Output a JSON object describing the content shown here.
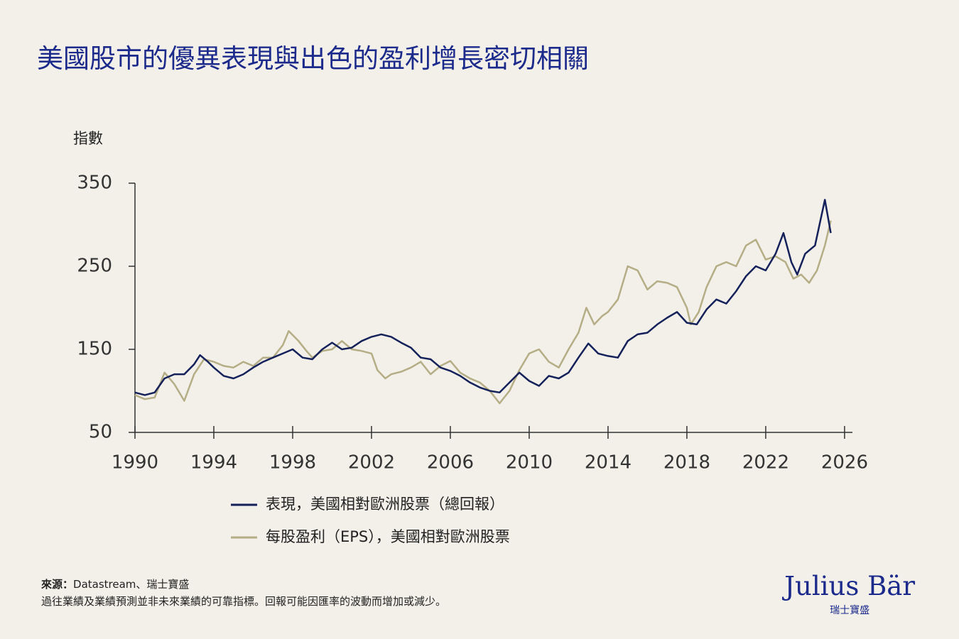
{
  "title": "美國股市的優異表現與出色的盈利增長密切相關",
  "chart_data": {
    "type": "line",
    "y_label": "指數",
    "xlim": [
      1990,
      2026.4
    ],
    "ylim": [
      50,
      350
    ],
    "xticks": [
      1990,
      1994,
      1998,
      2002,
      2006,
      2010,
      2014,
      2018,
      2022,
      2026
    ],
    "yticks": [
      50,
      150,
      250,
      350
    ],
    "series": [
      {
        "name": "表現，美國相對歐洲股票（總回報）",
        "color": "#14215a",
        "x": [
          1990,
          1990.5,
          1991,
          1991.5,
          1992,
          1992.5,
          1993,
          1993.3,
          1993.7,
          1994,
          1994.5,
          1995,
          1995.5,
          1996,
          1996.5,
          1997,
          1997.5,
          1998,
          1998.5,
          1999,
          1999.5,
          2000,
          2000.5,
          2001,
          2001.5,
          2002,
          2002.5,
          2003,
          2003.5,
          2004,
          2004.5,
          2005,
          2005.5,
          2006,
          2006.5,
          2007,
          2007.5,
          2008,
          2008.5,
          2009,
          2009.5,
          2010,
          2010.5,
          2011,
          2011.5,
          2012,
          2012.5,
          2013,
          2013.5,
          2014,
          2014.5,
          2015,
          2015.5,
          2016,
          2016.5,
          2017,
          2017.5,
          2018,
          2018.5,
          2019,
          2019.5,
          2020,
          2020.5,
          2021,
          2021.5,
          2022,
          2022.5,
          2022.9,
          2023.3,
          2023.6,
          2024,
          2024.5,
          2025,
          2025.3
        ],
        "values": [
          98,
          95,
          98,
          115,
          120,
          120,
          132,
          143,
          135,
          128,
          118,
          115,
          120,
          128,
          135,
          140,
          145,
          150,
          140,
          138,
          150,
          158,
          150,
          152,
          160,
          165,
          168,
          165,
          158,
          152,
          140,
          138,
          128,
          124,
          118,
          110,
          104,
          100,
          98,
          110,
          122,
          112,
          106,
          118,
          115,
          122,
          140,
          157,
          145,
          142,
          140,
          160,
          168,
          170,
          180,
          188,
          195,
          182,
          180,
          198,
          210,
          205,
          220,
          238,
          250,
          245,
          265,
          290,
          255,
          240,
          265,
          275,
          330,
          290
        ]
      },
      {
        "name": "每股盈利（EPS），美國相對歐洲股票",
        "color": "#b5ad85",
        "x": [
          1990,
          1990.5,
          1991,
          1991.5,
          1992,
          1992.5,
          1993,
          1993.5,
          1994,
          1994.5,
          1995,
          1995.5,
          1996,
          1996.5,
          1997,
          1997.5,
          1997.8,
          1998.3,
          1998.7,
          1999,
          1999.5,
          2000,
          2000.5,
          2001,
          2001.5,
          2002,
          2002.3,
          2002.7,
          2003,
          2003.5,
          2004,
          2004.5,
          2005,
          2005.5,
          2006,
          2006.5,
          2007,
          2007.5,
          2008,
          2008.5,
          2009,
          2009.5,
          2010,
          2010.5,
          2011,
          2011.5,
          2012,
          2012.5,
          2012.9,
          2013.3,
          2013.7,
          2014,
          2014.5,
          2015,
          2015.5,
          2016,
          2016.5,
          2017,
          2017.5,
          2018,
          2018.2,
          2018.6,
          2019,
          2019.5,
          2020,
          2020.5,
          2021,
          2021.5,
          2022,
          2022.5,
          2023,
          2023.4,
          2023.8,
          2024.2,
          2024.6,
          2025,
          2025.3
        ],
        "values": [
          95,
          90,
          92,
          122,
          108,
          88,
          120,
          138,
          135,
          130,
          128,
          135,
          130,
          140,
          140,
          155,
          172,
          160,
          148,
          140,
          148,
          150,
          160,
          150,
          148,
          145,
          125,
          115,
          120,
          123,
          128,
          135,
          120,
          130,
          136,
          122,
          115,
          110,
          100,
          85,
          100,
          125,
          145,
          150,
          135,
          128,
          150,
          170,
          200,
          180,
          190,
          195,
          210,
          250,
          245,
          222,
          232,
          230,
          225,
          200,
          180,
          195,
          225,
          250,
          255,
          250,
          275,
          282,
          258,
          262,
          255,
          235,
          240,
          230,
          245,
          275,
          305
        ]
      }
    ]
  },
  "source_label": "來源：",
  "source": "Datastream、瑞士寶盛",
  "note": "過往業績及業績預測並非未來業績的可靠指標。回報可能因匯率的波動而增加或減少。",
  "logo": {
    "name": "Julius Bär",
    "tagline": "瑞士寶盛"
  }
}
